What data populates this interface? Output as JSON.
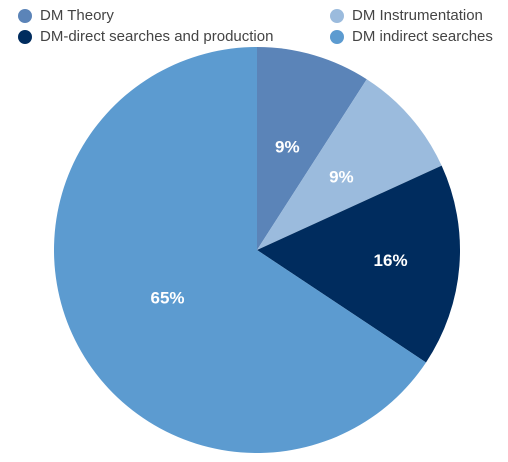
{
  "chart_data": {
    "type": "pie",
    "title": "",
    "legend_position": "top",
    "slices": [
      {
        "name": "DM Theory",
        "value": 9,
        "label": "9%",
        "color": "#5b84b8"
      },
      {
        "name": "DM Instrumentation",
        "value": 9,
        "label": "9%",
        "color": "#9bbbdd"
      },
      {
        "name": "DM-direct searches and production",
        "value": 16,
        "label": "16%",
        "color": "#002c5e"
      },
      {
        "name": "DM indirect searches",
        "value": 65,
        "label": "65%",
        "color": "#5c9bd0"
      }
    ]
  }
}
